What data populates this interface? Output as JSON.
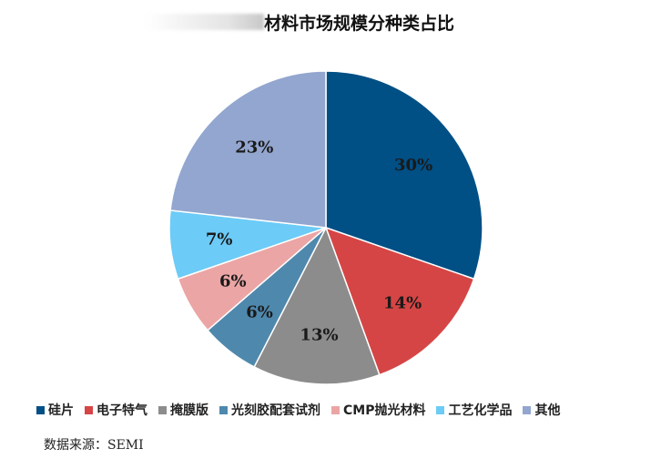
{
  "chart_data": {
    "type": "pie",
    "title": "材料市场规模分种类占比",
    "slices": [
      {
        "label": "硅片",
        "value": 30,
        "display": "30%",
        "color": "#004F85"
      },
      {
        "label": "电子特气",
        "value": 14,
        "display": "14%",
        "color": "#D64545"
      },
      {
        "label": "掩膜版",
        "value": 13,
        "display": "13%",
        "color": "#8C8C8C"
      },
      {
        "label": "光刻胶配套试剂",
        "value": 6,
        "display": "6%",
        "color": "#4F88AD"
      },
      {
        "label": "CMP抛光材料",
        "value": 6,
        "display": "6%",
        "color": "#EBA5A5"
      },
      {
        "label": "工艺化学品",
        "value": 7,
        "display": "7%",
        "color": "#6CCBF7"
      },
      {
        "label": "其他",
        "value": 23,
        "display": "23%",
        "color": "#92A6CF"
      }
    ],
    "legend_position": "bottom",
    "start_angle": "12 o'clock",
    "direction": "clockwise"
  },
  "source_text": "数据来源：SEMI"
}
